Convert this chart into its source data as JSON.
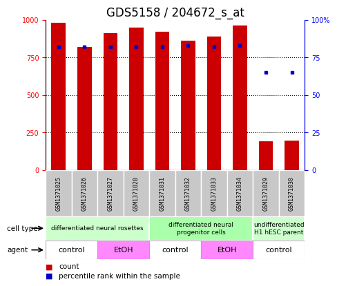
{
  "title": "GDS5158 / 204672_s_at",
  "samples": [
    "GSM1371025",
    "GSM1371026",
    "GSM1371027",
    "GSM1371028",
    "GSM1371031",
    "GSM1371032",
    "GSM1371033",
    "GSM1371034",
    "GSM1371029",
    "GSM1371030"
  ],
  "counts": [
    980,
    820,
    910,
    950,
    920,
    860,
    890,
    960,
    190,
    195
  ],
  "percentiles": [
    82,
    82,
    82,
    82,
    82,
    83,
    82,
    83,
    65,
    65
  ],
  "ylim_left": [
    0,
    1000
  ],
  "ylim_right": [
    0,
    100
  ],
  "yticks_left": [
    0,
    250,
    500,
    750,
    1000
  ],
  "yticks_right": [
    0,
    25,
    50,
    75,
    100
  ],
  "bar_color": "#cc0000",
  "dot_color": "#0000cc",
  "cell_type_groups": [
    {
      "label": "differentiated neural rosettes",
      "start": 0,
      "end": 4,
      "color": "#ccffcc"
    },
    {
      "label": "differentiated neural\nprogenitor cells",
      "start": 4,
      "end": 8,
      "color": "#aaffaa"
    },
    {
      "label": "undifferentiated\nH1 hESC parent",
      "start": 8,
      "end": 10,
      "color": "#ccffcc"
    }
  ],
  "agent_groups": [
    {
      "label": "control",
      "start": 0,
      "end": 2,
      "color": "#ffffff"
    },
    {
      "label": "EtOH",
      "start": 2,
      "end": 4,
      "color": "#ff88ff"
    },
    {
      "label": "control",
      "start": 4,
      "end": 6,
      "color": "#ffffff"
    },
    {
      "label": "EtOH",
      "start": 6,
      "end": 8,
      "color": "#ff88ff"
    },
    {
      "label": "control",
      "start": 8,
      "end": 10,
      "color": "#ffffff"
    }
  ],
  "bar_width": 0.55,
  "title_fontsize": 12,
  "tick_fontsize": 7,
  "sample_fontsize": 6,
  "cell_fontsize": 6.5,
  "agent_fontsize": 8,
  "legend_fontsize": 7.5
}
